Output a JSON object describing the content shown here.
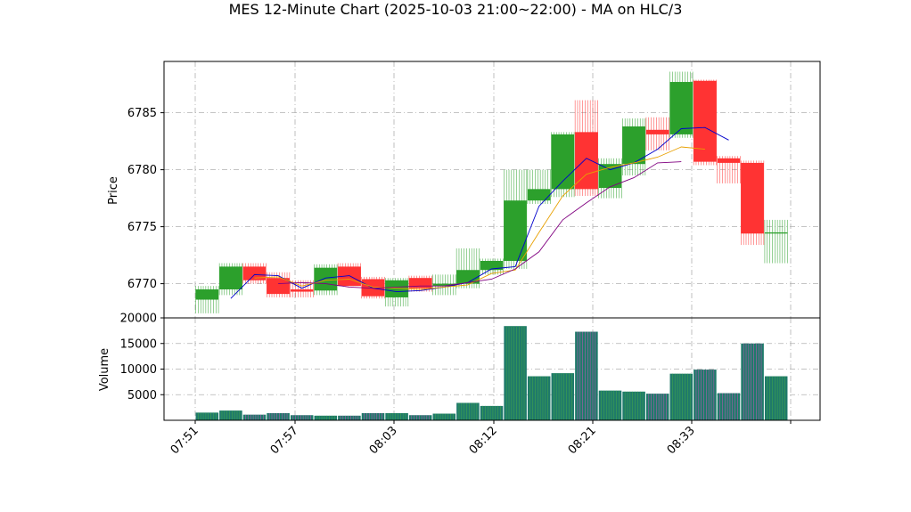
{
  "chart_data": {
    "type": "candlestick",
    "title": "MES 12-Minute Chart (2025-10-03 21:00~22:00) - MA on HLC/3",
    "price_panel": {
      "ylabel": "Price",
      "yticks": [
        6770,
        6775,
        6780,
        6785
      ],
      "ylim": [
        6767.0,
        6789.5
      ],
      "grid": true
    },
    "volume_panel": {
      "ylabel": "Volume",
      "yticks": [
        5000,
        10000,
        15000,
        20000
      ],
      "ylim": [
        0,
        20000
      ],
      "grid": true
    },
    "x_tick_labels": [
      "07:51",
      "07:57",
      "08:03",
      "08:12",
      "08:21",
      "08:33"
    ],
    "candles": [
      {
        "o": 6768.6,
        "h": 6769.8,
        "l": 6767.4,
        "c": 6769.5,
        "v": 1500
      },
      {
        "o": 6769.5,
        "h": 6771.8,
        "l": 6769.0,
        "c": 6771.5,
        "v": 1900
      },
      {
        "o": 6771.5,
        "h": 6771.8,
        "l": 6770.0,
        "c": 6770.3,
        "v": 1100
      },
      {
        "o": 6770.5,
        "h": 6771.0,
        "l": 6768.8,
        "c": 6769.1,
        "v": 1400
      },
      {
        "o": 6769.5,
        "h": 6770.3,
        "l": 6768.8,
        "c": 6769.3,
        "v": 1000
      },
      {
        "o": 6769.4,
        "h": 6771.7,
        "l": 6769.0,
        "c": 6771.4,
        "v": 900
      },
      {
        "o": 6771.5,
        "h": 6771.8,
        "l": 6769.8,
        "c": 6769.8,
        "v": 900
      },
      {
        "o": 6770.4,
        "h": 6770.6,
        "l": 6768.7,
        "c": 6768.9,
        "v": 1400
      },
      {
        "o": 6768.8,
        "h": 6770.5,
        "l": 6768.0,
        "c": 6770.3,
        "v": 1400
      },
      {
        "o": 6770.5,
        "h": 6770.7,
        "l": 6769.3,
        "c": 6769.6,
        "v": 1000
      },
      {
        "o": 6769.8,
        "h": 6770.8,
        "l": 6769.0,
        "c": 6770.0,
        "v": 1300
      },
      {
        "o": 6770.0,
        "h": 6773.1,
        "l": 6769.6,
        "c": 6771.2,
        "v": 3400
      },
      {
        "o": 6771.2,
        "h": 6772.2,
        "l": 6770.8,
        "c": 6772.0,
        "v": 2800
      },
      {
        "o": 6772.0,
        "h": 6780.0,
        "l": 6771.3,
        "c": 6777.3,
        "v": 18400
      },
      {
        "o": 6777.3,
        "h": 6780.0,
        "l": 6777.0,
        "c": 6778.3,
        "v": 8600
      },
      {
        "o": 6778.3,
        "h": 6783.3,
        "l": 6777.6,
        "c": 6783.1,
        "v": 9200
      },
      {
        "o": 6783.3,
        "h": 6786.1,
        "l": 6777.7,
        "c": 6778.3,
        "v": 17300
      },
      {
        "o": 6778.4,
        "h": 6781.0,
        "l": 6777.5,
        "c": 6780.5,
        "v": 5800
      },
      {
        "o": 6780.5,
        "h": 6784.5,
        "l": 6779.5,
        "c": 6783.8,
        "v": 5600
      },
      {
        "o": 6783.5,
        "h": 6784.6,
        "l": 6781.7,
        "c": 6783.1,
        "v": 5200
      },
      {
        "o": 6783.1,
        "h": 6788.6,
        "l": 6782.8,
        "c": 6787.7,
        "v": 9100
      },
      {
        "o": 6787.8,
        "h": 6787.9,
        "l": 6780.4,
        "c": 6780.7,
        "v": 9900
      },
      {
        "o": 6781.0,
        "h": 6781.2,
        "l": 6778.8,
        "c": 6780.6,
        "v": 5300
      },
      {
        "o": 6780.6,
        "h": 6780.8,
        "l": 6773.4,
        "c": 6774.4,
        "v": 15000
      },
      {
        "o": 6774.4,
        "h": 6775.6,
        "l": 6771.8,
        "c": 6774.5,
        "v": 8600
      }
    ],
    "moving_averages": [
      {
        "color": "#0000cc",
        "values": [
          null,
          6768.7,
          6770.8,
          6770.7,
          6769.6,
          6770.5,
          6770.7,
          6769.6,
          6769.3,
          6769.4,
          6769.7,
          6770.1,
          6771.3,
          6771.5,
          6776.8,
          6779.0,
          6781.0,
          6780.0,
          6780.6,
          6781.8,
          6783.6,
          6783.7,
          6782.6,
          null,
          null
        ]
      },
      {
        "color": "#e8a000",
        "values": [
          null,
          null,
          6770.5,
          6770.6,
          6769.8,
          6770.3,
          6770.4,
          6769.7,
          6769.6,
          6769.5,
          6769.7,
          6769.9,
          6770.9,
          6771.2,
          6774.5,
          6777.7,
          6779.6,
          6780.2,
          6780.6,
          6781.1,
          6782.0,
          6781.8,
          null,
          null,
          null
        ]
      },
      {
        "color": "#800080",
        "values": [
          null,
          null,
          null,
          6770.0,
          6770.1,
          6770.0,
          6769.7,
          6769.6,
          6769.7,
          6769.8,
          6769.8,
          6770.1,
          6770.4,
          6771.3,
          6772.8,
          6775.6,
          6777.1,
          6778.5,
          6779.3,
          6780.6,
          6780.7,
          null,
          null,
          null,
          null
        ]
      }
    ]
  }
}
